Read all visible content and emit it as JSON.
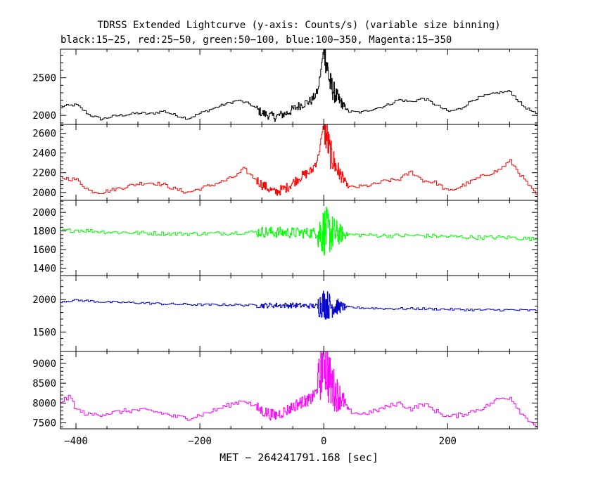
{
  "title_line1": "TDRSS Extended Lightcurve (y-axis: Counts/s) (variable size binning)",
  "title_line2": "black:15−25, red:25−50, green:50−100, blue:100−350, Magenta:15−350",
  "chart_data": {
    "type": "line",
    "title": "TDRSS Extended Lightcurve (y-axis: Counts/s) (variable size binning)",
    "subtitle": "black:15−25, red:25−50, green:50−100, blue:100−350, Magenta:15−350",
    "xlabel": "MET − 264241791.168 [sec]",
    "ylabel": "Counts/s",
    "xlim": [
      -425,
      345
    ],
    "x_ticks": [
      -400,
      -200,
      0,
      200
    ],
    "x_tick_labels": [
      "−400",
      "−200",
      "0",
      "200"
    ],
    "grid": false,
    "panels": [
      {
        "name": "15−25",
        "color": "#000000",
        "ylim": [
          1880,
          2880
        ],
        "y_ticks": [
          2000,
          2500
        ],
        "y_tick_labels": [
          "2000",
          "2500"
        ],
        "x": [
          -425,
          -400,
          -380,
          -360,
          -340,
          -320,
          -300,
          -280,
          -260,
          -240,
          -220,
          -200,
          -180,
          -160,
          -140,
          -120,
          -100,
          -80,
          -60,
          -40,
          -20,
          -10,
          0,
          10,
          20,
          30,
          40,
          60,
          80,
          100,
          120,
          140,
          160,
          180,
          200,
          220,
          240,
          260,
          280,
          300,
          320,
          345
        ],
        "values": [
          2120,
          2140,
          2010,
          1950,
          1990,
          2010,
          2030,
          2020,
          2060,
          2000,
          1960,
          2030,
          2090,
          2150,
          2200,
          2150,
          2030,
          1980,
          2030,
          2130,
          2200,
          2320,
          2900,
          2420,
          2250,
          2150,
          2050,
          2040,
          2090,
          2130,
          2210,
          2180,
          2230,
          2140,
          2050,
          2090,
          2210,
          2260,
          2300,
          2320,
          2130,
          2000
        ],
        "noise": [
          [
            -110,
            0,
            60
          ],
          [
            -10,
            35,
            220
          ],
          [
            35,
            345,
            18
          ]
        ]
      },
      {
        "name": "25−50",
        "color": "#ff0000",
        "ylim": [
          1920,
          2690
        ],
        "y_ticks": [
          2000,
          2200,
          2400,
          2600
        ],
        "y_tick_labels": [
          "2000",
          "2200",
          "2400",
          "2600"
        ],
        "x": [
          -425,
          -400,
          -380,
          -360,
          -340,
          -320,
          -300,
          -280,
          -260,
          -240,
          -220,
          -200,
          -180,
          -160,
          -140,
          -130,
          -120,
          -100,
          -80,
          -60,
          -40,
          -20,
          -10,
          0,
          10,
          20,
          30,
          40,
          60,
          80,
          100,
          120,
          140,
          160,
          180,
          200,
          220,
          240,
          260,
          280,
          300,
          320,
          345
        ],
        "values": [
          2150,
          2130,
          2020,
          2000,
          2030,
          2060,
          2090,
          2100,
          2080,
          2030,
          2000,
          2040,
          2080,
          2120,
          2180,
          2240,
          2180,
          2080,
          2000,
          2050,
          2150,
          2220,
          2350,
          2690,
          2400,
          2250,
          2150,
          2050,
          2060,
          2080,
          2120,
          2130,
          2210,
          2120,
          2100,
          2010,
          2060,
          2120,
          2180,
          2220,
          2320,
          2150,
          1950
        ],
        "noise": [
          [
            -110,
            0,
            50
          ],
          [
            -10,
            35,
            200
          ],
          [
            35,
            345,
            20
          ]
        ]
      },
      {
        "name": "50−100",
        "color": "#00ff00",
        "ylim": [
          1320,
          2130
        ],
        "y_ticks": [
          1400,
          1600,
          1800,
          2000
        ],
        "y_tick_labels": [
          "1400",
          "1600",
          "1800",
          "2000"
        ],
        "x": [
          -425,
          -400,
          -350,
          -300,
          -250,
          -200,
          -150,
          -100,
          -50,
          -10,
          0,
          10,
          40,
          100,
          150,
          200,
          250,
          300,
          345
        ],
        "values": [
          1800,
          1810,
          1790,
          1780,
          1770,
          1770,
          1780,
          1790,
          1780,
          1780,
          1800,
          1780,
          1760,
          1750,
          1750,
          1740,
          1730,
          1730,
          1710
        ],
        "noise": [
          [
            -110,
            -10,
            60
          ],
          [
            -10,
            35,
            280
          ],
          [
            35,
            345,
            22
          ]
        ]
      },
      {
        "name": "100−350",
        "color": "#0000cc",
        "ylim": [
          1200,
          2370
        ],
        "y_ticks": [
          1500,
          2000
        ],
        "y_tick_labels": [
          "1500",
          "2000"
        ],
        "x": [
          -425,
          -400,
          -350,
          -300,
          -250,
          -200,
          -150,
          -100,
          -50,
          -10,
          0,
          10,
          40,
          100,
          150,
          200,
          250,
          300,
          345
        ],
        "values": [
          1970,
          1990,
          1960,
          1950,
          1930,
          1920,
          1920,
          1910,
          1910,
          1900,
          1950,
          1900,
          1880,
          1860,
          1860,
          1850,
          1840,
          1840,
          1830
        ],
        "noise": [
          [
            -110,
            -10,
            40
          ],
          [
            -10,
            35,
            250
          ],
          [
            35,
            345,
            18
          ]
        ]
      },
      {
        "name": "15−350",
        "color": "#ff00ff",
        "ylim": [
          7350,
          9300
        ],
        "y_ticks": [
          7500,
          8000,
          8500,
          9000
        ],
        "y_tick_labels": [
          "7500",
          "8000",
          "8500",
          "9000"
        ],
        "x": [
          -425,
          -410,
          -400,
          -380,
          -360,
          -340,
          -320,
          -300,
          -280,
          -260,
          -240,
          -220,
          -200,
          -180,
          -160,
          -140,
          -130,
          -120,
          -100,
          -80,
          -60,
          -40,
          -20,
          -10,
          0,
          10,
          20,
          30,
          40,
          60,
          80,
          100,
          120,
          140,
          160,
          180,
          200,
          220,
          240,
          260,
          280,
          300,
          320,
          345
        ],
        "values": [
          8050,
          8150,
          7830,
          7700,
          7720,
          7760,
          7800,
          7820,
          7800,
          7740,
          7650,
          7620,
          7700,
          7800,
          7920,
          8020,
          8080,
          7980,
          7800,
          7680,
          7820,
          8000,
          8100,
          8350,
          9250,
          8500,
          8250,
          8100,
          7800,
          7720,
          7790,
          7900,
          8000,
          7850,
          7980,
          7800,
          7650,
          7700,
          7800,
          7900,
          8100,
          8150,
          7700,
          7400
        ],
        "noise": [
          [
            -110,
            -10,
            150
          ],
          [
            -10,
            35,
            850
          ],
          [
            35,
            345,
            60
          ]
        ]
      }
    ]
  }
}
